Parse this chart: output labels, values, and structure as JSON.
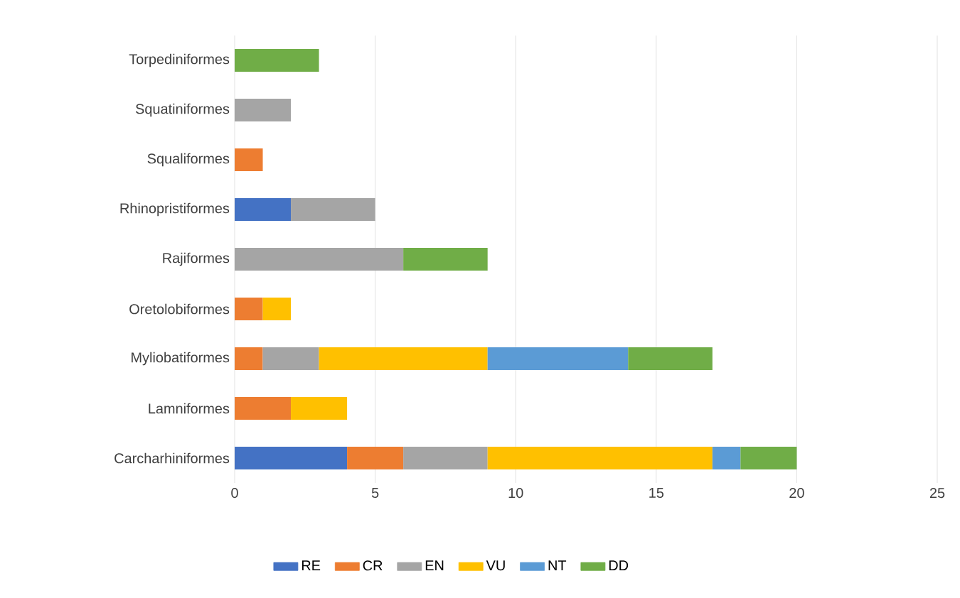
{
  "chart_data": {
    "type": "bar",
    "orientation": "horizontal",
    "stacked": true,
    "categories": [
      "Torpediniformes",
      "Squatiniformes",
      "Squaliformes",
      "Rhinopristiformes",
      "Rajiformes",
      "Oretolobiformes",
      "Myliobatiformes",
      "Lamniformes",
      "Carcharhiniformes"
    ],
    "series": [
      {
        "name": "RE",
        "color": "#4472c4",
        "values": [
          null,
          null,
          null,
          2,
          null,
          null,
          null,
          null,
          4
        ]
      },
      {
        "name": "CR",
        "color": "#ed7d31",
        "values": [
          null,
          null,
          1,
          null,
          null,
          1,
          1,
          2,
          2
        ]
      },
      {
        "name": "EN",
        "color": "#a5a5a5",
        "values": [
          null,
          2,
          null,
          3,
          6,
          null,
          2,
          null,
          3
        ]
      },
      {
        "name": "VU",
        "color": "#ffc000",
        "values": [
          null,
          null,
          null,
          null,
          null,
          1,
          6,
          2,
          8
        ]
      },
      {
        "name": "NT",
        "color": "#5b9bd5",
        "values": [
          null,
          null,
          null,
          null,
          null,
          null,
          5,
          null,
          1
        ]
      },
      {
        "name": "DD",
        "color": "#70ad47",
        "values": [
          3,
          null,
          null,
          null,
          3,
          null,
          3,
          null,
          2
        ]
      }
    ],
    "xlim": [
      0,
      25
    ],
    "xticks": [
      0,
      5,
      10,
      15,
      20,
      25
    ],
    "grid": "x",
    "legend": "bottom"
  }
}
